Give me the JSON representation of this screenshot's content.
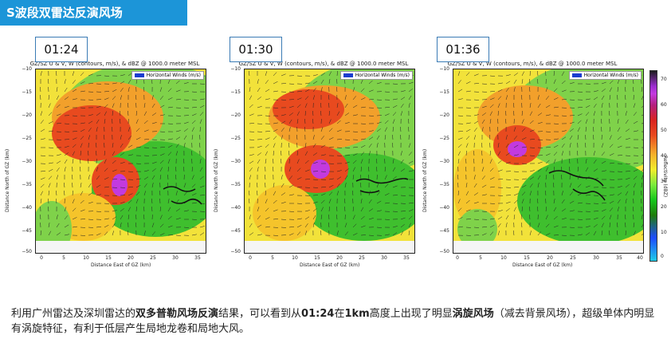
{
  "banner": {
    "title": "S波段双雷达反演风场"
  },
  "panels": [
    {
      "time": "01:24",
      "title": "GZ/SZ U & V, W (contours, m/s), & dBZ @ 1000.0 meter MSL",
      "legend": "Horizontal Winds (m/s)",
      "ylabel": "Distance North of GZ (km)",
      "xlabel": "Distance East of GZ (km)",
      "xticks": [
        "0",
        "5",
        "10",
        "15",
        "20",
        "25",
        "30",
        "35"
      ],
      "yticks": [
        "−10",
        "−15",
        "−20",
        "−25",
        "−30",
        "−35",
        "−40",
        "−45",
        "−50"
      ]
    },
    {
      "time": "01:30",
      "title": "GZ/SZ U & V, W (contours, m/s), & dBZ @ 1000.0 meter MSL",
      "legend": "Horizontal Winds (m/s)",
      "ylabel": "Distance North of GZ (km)",
      "xlabel": "Distance East of GZ (km)",
      "xticks": [
        "0",
        "5",
        "10",
        "15",
        "20",
        "25",
        "30",
        "35"
      ],
      "yticks": [
        "−10",
        "−15",
        "−20",
        "−25",
        "−30",
        "−35",
        "−40",
        "−45",
        "−50"
      ]
    },
    {
      "time": "01:36",
      "title": "GZ/SZ U & V, W (contours, m/s), & dBZ @ 1000.0 meter MSL",
      "legend": "Horizontal Winds (m/s)",
      "ylabel": "Distance North of GZ (km)",
      "xlabel": "Distance East of GZ (km)",
      "xticks": [
        "0",
        "5",
        "10",
        "15",
        "20",
        "25",
        "30",
        "35",
        "40"
      ],
      "yticks": [
        "−10",
        "−15",
        "−20",
        "−25",
        "−30",
        "−35",
        "−40",
        "−45",
        "−50"
      ]
    }
  ],
  "colorbar": {
    "label": "Reflectivity (dBZ)",
    "ticks": [
      "70",
      "60",
      "50",
      "40",
      "30",
      "20",
      "10",
      "0"
    ]
  },
  "caption": {
    "p1": "利用广州雷达及深圳雷达的",
    "b1": "双多普勒风场反演",
    "p2": "结果，可以看到从",
    "b2": "01:24",
    "p3": "在",
    "b3": "1km",
    "p4": "高度上出现了明显",
    "b4": "涡旋风场",
    "p5": "（减去背景风场），超级单体内明显有涡旋特征，有利于低层产生局地龙卷和局地大风。"
  }
}
